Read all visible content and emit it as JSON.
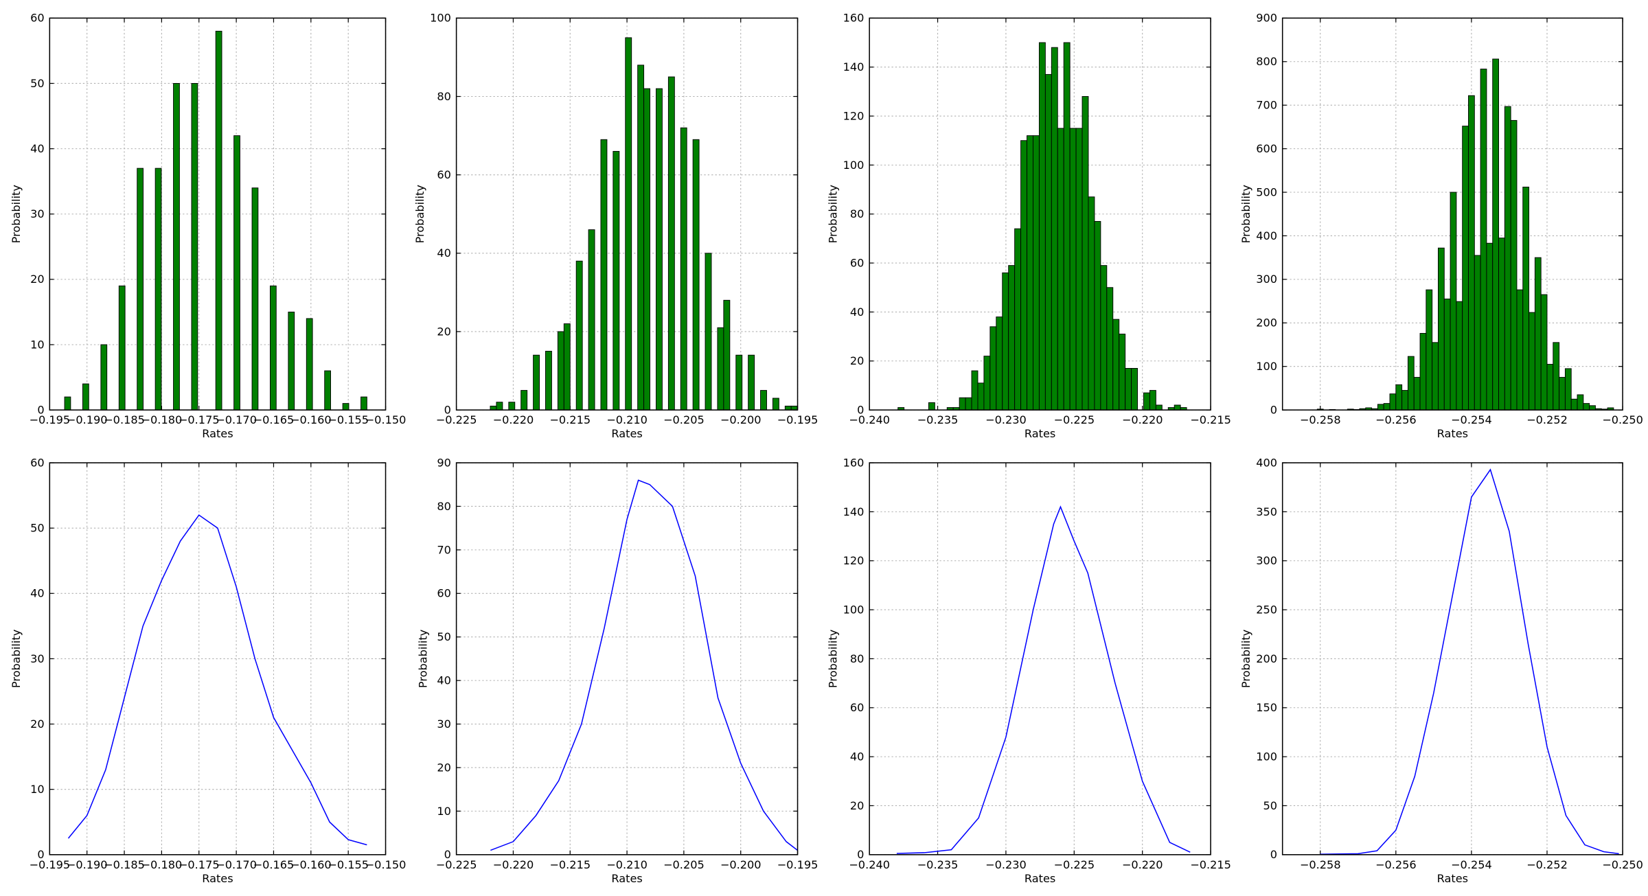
{
  "chart_data": [
    {
      "type": "histogram",
      "xlabel": "Rates",
      "ylabel": "Probability",
      "color": "#008000",
      "grid": true,
      "bins": [
        -0.193,
        -0.19219,
        -0.19138,
        -0.19057,
        -0.18976,
        -0.18895,
        -0.18814,
        -0.18733,
        -0.18652,
        -0.18571,
        -0.1849,
        -0.18409,
        -0.18328,
        -0.18247,
        -0.18166,
        -0.18085,
        -0.18004,
        -0.17923,
        -0.17842,
        -0.17761,
        -0.1768,
        -0.17599,
        -0.17518,
        -0.17437,
        -0.17356,
        -0.17275,
        -0.17194,
        -0.17113,
        -0.17032,
        -0.16951,
        -0.1687,
        -0.16789,
        -0.16708,
        -0.16627,
        -0.16546,
        -0.16465,
        -0.16384,
        -0.16303,
        -0.16222,
        -0.16141,
        -0.1606,
        -0.15979,
        -0.15898,
        -0.15817,
        -0.15736,
        -0.15655,
        -0.15574,
        -0.15493,
        -0.15412,
        -0.15331,
        -0.1525
      ],
      "values": [
        2,
        0,
        0,
        4,
        0,
        0,
        10,
        0,
        0,
        19,
        0,
        0,
        37,
        0,
        0,
        37,
        0,
        0,
        50,
        0,
        0,
        50,
        0,
        0,
        0,
        58,
        0,
        0,
        42,
        0,
        0,
        34,
        0,
        0,
        19,
        0,
        0,
        15,
        0,
        0,
        14,
        0,
        0,
        6,
        0,
        0,
        1,
        0,
        0,
        2
      ],
      "xlim": [
        -0.195,
        -0.15
      ],
      "ylim": [
        0,
        60
      ],
      "xticks": [
        {
          "value": -0.195,
          "label": "−0.195"
        },
        {
          "value": -0.19,
          "label": "−0.190"
        },
        {
          "value": -0.185,
          "label": "−0.185"
        },
        {
          "value": -0.18,
          "label": "−0.180"
        },
        {
          "value": -0.175,
          "label": "−0.175"
        },
        {
          "value": -0.17,
          "label": "−0.170"
        },
        {
          "value": -0.165,
          "label": "−0.165"
        },
        {
          "value": -0.16,
          "label": "−0.160"
        },
        {
          "value": -0.155,
          "label": "−0.155"
        },
        {
          "value": -0.15,
          "label": "−0.150"
        }
      ],
      "yticks": [
        0,
        10,
        20,
        30,
        40,
        50,
        60
      ]
    },
    {
      "type": "histogram",
      "xlabel": "Rates",
      "ylabel": "Probability",
      "color": "#008000",
      "grid": true,
      "bins": [
        -0.22202,
        -0.22148,
        -0.22094,
        -0.2204,
        -0.21986,
        -0.21932,
        -0.21878,
        -0.21824,
        -0.2177,
        -0.21716,
        -0.21662,
        -0.21608,
        -0.21554,
        -0.215,
        -0.21446,
        -0.21392,
        -0.21338,
        -0.21284,
        -0.2123,
        -0.21176,
        -0.21122,
        -0.21068,
        -0.21014,
        -0.2096,
        -0.20906,
        -0.20852,
        -0.20798,
        -0.20744,
        -0.2069,
        -0.20636,
        -0.20582,
        -0.20528,
        -0.20474,
        -0.2042,
        -0.20366,
        -0.20312,
        -0.20258,
        -0.20204,
        -0.2015,
        -0.20096,
        -0.20042,
        -0.19988,
        -0.19934,
        -0.1988,
        -0.19826,
        -0.19772,
        -0.19718,
        -0.19664,
        -0.1961,
        -0.19556,
        -0.19502
      ],
      "values": [
        1,
        2,
        0,
        2,
        0,
        5,
        0,
        14,
        0,
        15,
        0,
        20,
        22,
        0,
        38,
        0,
        46,
        0,
        69,
        0,
        66,
        0,
        95,
        0,
        88,
        82,
        0,
        82,
        0,
        85,
        0,
        72,
        0,
        69,
        0,
        40,
        0,
        21,
        28,
        0,
        14,
        0,
        14,
        0,
        5,
        0,
        3,
        0,
        1,
        1
      ],
      "xlim": [
        -0.225,
        -0.195
      ],
      "ylim": [
        0,
        100
      ],
      "xticks": [
        {
          "value": -0.225,
          "label": "−0.225"
        },
        {
          "value": -0.22,
          "label": "−0.220"
        },
        {
          "value": -0.215,
          "label": "−0.215"
        },
        {
          "value": -0.21,
          "label": "−0.210"
        },
        {
          "value": -0.205,
          "label": "−0.205"
        },
        {
          "value": -0.2,
          "label": "−0.200"
        },
        {
          "value": -0.195,
          "label": "−0.195"
        }
      ],
      "yticks": [
        0,
        20,
        40,
        60,
        80,
        100
      ]
    },
    {
      "type": "histogram",
      "xlabel": "Rates",
      "ylabel": "Probability",
      "color": "#008000",
      "grid": true,
      "bins": [
        -0.23791,
        -0.23746,
        -0.23701,
        -0.23656,
        -0.23611,
        -0.23566,
        -0.23521,
        -0.23476,
        -0.23431,
        -0.23386,
        -0.23341,
        -0.23296,
        -0.23251,
        -0.23206,
        -0.23161,
        -0.23116,
        -0.23071,
        -0.23026,
        -0.22981,
        -0.22936,
        -0.22891,
        -0.22846,
        -0.22801,
        -0.22756,
        -0.22711,
        -0.22666,
        -0.22621,
        -0.22576,
        -0.22531,
        -0.22486,
        -0.22441,
        -0.22396,
        -0.22351,
        -0.22306,
        -0.22261,
        -0.22216,
        -0.22171,
        -0.22126,
        -0.22081,
        -0.22036,
        -0.21991,
        -0.21946,
        -0.21901,
        -0.21856,
        -0.21811,
        -0.21766,
        -0.21721,
        -0.21676
      ],
      "values": [
        1,
        0,
        0,
        0,
        0,
        3,
        0,
        0,
        1,
        1,
        5,
        5,
        16,
        11,
        22,
        34,
        38,
        56,
        59,
        74,
        110,
        112,
        112,
        150,
        137,
        148,
        115,
        150,
        115,
        115,
        128,
        87,
        77,
        59,
        50,
        37,
        31,
        17,
        17,
        0,
        7,
        8,
        2,
        0,
        1,
        2,
        1
      ],
      "xlim": [
        -0.24,
        -0.215
      ],
      "ylim": [
        0,
        160
      ],
      "xticks": [
        {
          "value": -0.24,
          "label": "−0.240"
        },
        {
          "value": -0.235,
          "label": "−0.235"
        },
        {
          "value": -0.23,
          "label": "−0.230"
        },
        {
          "value": -0.225,
          "label": "−0.225"
        },
        {
          "value": -0.22,
          "label": "−0.220"
        },
        {
          "value": -0.215,
          "label": "−0.215"
        }
      ],
      "yticks": [
        0,
        20,
        40,
        60,
        80,
        100,
        120,
        140,
        160
      ]
    },
    {
      "type": "histogram",
      "xlabel": "Rates",
      "ylabel": "Probability",
      "color": "#008000",
      "grid": true,
      "bins": [
        -0.25808,
        -0.25792,
        -0.25776,
        -0.2576,
        -0.25744,
        -0.25728,
        -0.25712,
        -0.25696,
        -0.2568,
        -0.25664,
        -0.25648,
        -0.25632,
        -0.25616,
        -0.256,
        -0.25584,
        -0.25568,
        -0.25552,
        -0.25536,
        -0.2552,
        -0.25504,
        -0.25488,
        -0.25472,
        -0.25456,
        -0.2544,
        -0.25424,
        -0.25408,
        -0.25392,
        -0.25376,
        -0.2536,
        -0.25344,
        -0.25328,
        -0.25312,
        -0.25296,
        -0.2528,
        -0.25264,
        -0.25248,
        -0.25232,
        -0.25216,
        -0.252,
        -0.25184,
        -0.25168,
        -0.25152,
        -0.25136,
        -0.2512,
        -0.25104,
        -0.25088,
        -0.25072,
        -0.25056,
        -0.2504,
        -0.25024
      ],
      "values": [
        2,
        0,
        1,
        0,
        0,
        2,
        1,
        3,
        5,
        3,
        13,
        15,
        37,
        58,
        45,
        123,
        75,
        176,
        276,
        155,
        372,
        255,
        500,
        249,
        652,
        722,
        355,
        783,
        383,
        806,
        395,
        697,
        665,
        276,
        512,
        224,
        350,
        265,
        105,
        155,
        75,
        95,
        25,
        35,
        15,
        10,
        3,
        2,
        5
      ],
      "xlim": [
        -0.259,
        -0.25
      ],
      "ylim": [
        0,
        900
      ],
      "xticks": [
        {
          "value": -0.258,
          "label": "−0.258"
        },
        {
          "value": -0.256,
          "label": "−0.256"
        },
        {
          "value": -0.254,
          "label": "−0.254"
        },
        {
          "value": -0.252,
          "label": "−0.252"
        },
        {
          "value": -0.25,
          "label": "−0.250"
        }
      ],
      "yticks": [
        0,
        100,
        200,
        300,
        400,
        500,
        600,
        700,
        800,
        900
      ]
    },
    {
      "type": "line",
      "xlabel": "Rates",
      "ylabel": "Probability",
      "color": "#0000ff",
      "grid": true,
      "x": [
        -0.1925,
        -0.19,
        -0.1875,
        -0.185,
        -0.1825,
        -0.18,
        -0.1775,
        -0.175,
        -0.1725,
        -0.17,
        -0.1675,
        -0.165,
        -0.1625,
        -0.16,
        -0.1575,
        -0.155,
        -0.1525
      ],
      "values": [
        2.5,
        6,
        13,
        24,
        35,
        42,
        48,
        52,
        50,
        41,
        30,
        21,
        16,
        11,
        5,
        2.3,
        1.5
      ],
      "xlim": [
        -0.195,
        -0.15
      ],
      "ylim": [
        0,
        60
      ],
      "xticks": [
        {
          "value": -0.195,
          "label": "−0.195"
        },
        {
          "value": -0.19,
          "label": "−0.190"
        },
        {
          "value": -0.185,
          "label": "−0.185"
        },
        {
          "value": -0.18,
          "label": "−0.180"
        },
        {
          "value": -0.175,
          "label": "−0.175"
        },
        {
          "value": -0.17,
          "label": "−0.170"
        },
        {
          "value": -0.165,
          "label": "−0.165"
        },
        {
          "value": -0.16,
          "label": "−0.160"
        },
        {
          "value": -0.155,
          "label": "−0.155"
        },
        {
          "value": -0.15,
          "label": "−0.150"
        }
      ],
      "yticks": [
        0,
        10,
        20,
        30,
        40,
        50,
        60
      ]
    },
    {
      "type": "line",
      "xlabel": "Rates",
      "ylabel": "Probability",
      "color": "#0000ff",
      "grid": true,
      "x": [
        -0.222,
        -0.22,
        -0.218,
        -0.216,
        -0.214,
        -0.212,
        -0.21,
        -0.209,
        -0.208,
        -0.206,
        -0.204,
        -0.202,
        -0.2,
        -0.198,
        -0.196,
        -0.195
      ],
      "values": [
        1,
        3,
        9,
        17,
        30,
        52,
        77,
        86,
        85,
        80,
        64,
        36,
        21,
        10,
        3,
        1
      ],
      "xlim": [
        -0.225,
        -0.195
      ],
      "ylim": [
        0,
        90
      ],
      "xticks": [
        {
          "value": -0.225,
          "label": "−0.225"
        },
        {
          "value": -0.22,
          "label": "−0.220"
        },
        {
          "value": -0.215,
          "label": "−0.215"
        },
        {
          "value": -0.21,
          "label": "−0.210"
        },
        {
          "value": -0.205,
          "label": "−0.205"
        },
        {
          "value": -0.2,
          "label": "−0.200"
        },
        {
          "value": -0.195,
          "label": "−0.195"
        }
      ],
      "yticks": [
        0,
        10,
        20,
        30,
        40,
        50,
        60,
        70,
        80,
        90
      ]
    },
    {
      "type": "line",
      "xlabel": "Rates",
      "ylabel": "Probability",
      "color": "#0000ff",
      "grid": true,
      "x": [
        -0.238,
        -0.236,
        -0.234,
        -0.232,
        -0.23,
        -0.228,
        -0.2265,
        -0.226,
        -0.225,
        -0.224,
        -0.222,
        -0.22,
        -0.218,
        -0.2165
      ],
      "values": [
        0.5,
        0.8,
        2,
        15,
        48,
        100,
        135,
        142,
        128,
        115,
        70,
        30,
        5,
        1
      ],
      "xlim": [
        -0.24,
        -0.215
      ],
      "ylim": [
        0,
        160
      ],
      "xticks": [
        {
          "value": -0.24,
          "label": "−0.240"
        },
        {
          "value": -0.235,
          "label": "−0.235"
        },
        {
          "value": -0.23,
          "label": "−0.230"
        },
        {
          "value": -0.225,
          "label": "−0.225"
        },
        {
          "value": -0.22,
          "label": "−0.220"
        },
        {
          "value": -0.215,
          "label": "−0.215"
        }
      ],
      "yticks": [
        0,
        20,
        40,
        60,
        80,
        100,
        120,
        140,
        160
      ]
    },
    {
      "type": "line",
      "xlabel": "Rates",
      "ylabel": "Probability",
      "color": "#0000ff",
      "grid": true,
      "x": [
        -0.258,
        -0.257,
        -0.2565,
        -0.256,
        -0.2555,
        -0.255,
        -0.2545,
        -0.254,
        -0.2535,
        -0.253,
        -0.2525,
        -0.252,
        -0.2515,
        -0.251,
        -0.2505,
        -0.2501
      ],
      "values": [
        0.5,
        1,
        4,
        25,
        80,
        165,
        265,
        365,
        393,
        330,
        215,
        110,
        40,
        10,
        3,
        1
      ],
      "xlim": [
        -0.259,
        -0.25
      ],
      "ylim": [
        0,
        400
      ],
      "xticks": [
        {
          "value": -0.258,
          "label": "−0.258"
        },
        {
          "value": -0.256,
          "label": "−0.256"
        },
        {
          "value": -0.254,
          "label": "−0.254"
        },
        {
          "value": -0.252,
          "label": "−0.252"
        },
        {
          "value": -0.25,
          "label": "−0.250"
        }
      ],
      "yticks": [
        0,
        50,
        100,
        150,
        200,
        250,
        300,
        350,
        400
      ]
    }
  ]
}
